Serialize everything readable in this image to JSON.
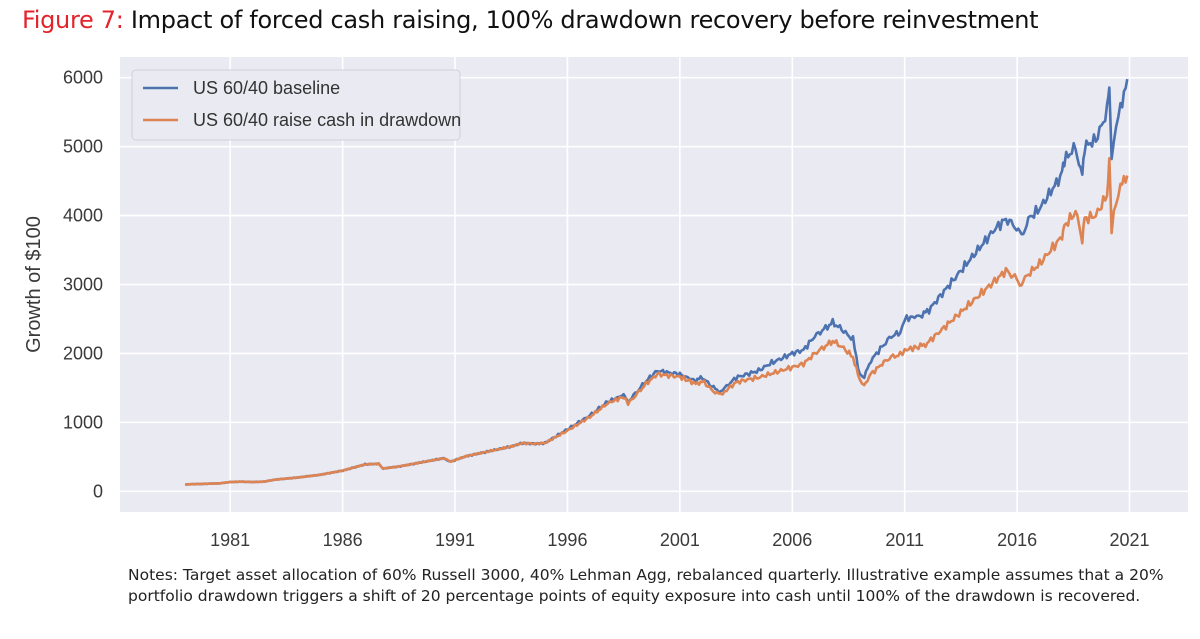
{
  "figure": {
    "label": "Figure 7",
    "separator": ":",
    "title": " Impact of forced cash raising, 100% drawdown recovery before reinvestment",
    "notes": "Notes: Target asset allocation of 60% Russell 3000, 40% Lehman Agg, rebalanced quarterly. Illustrative example assumes that a 20% portfolio drawdown triggers a shift of 20 percentage points of equity exposure into cash until 100% of the drawdown is recovered."
  },
  "colors": {
    "baseline": "#4c72b0",
    "raise_cash": "#dd8452",
    "plot_bg": "#eaeaf2",
    "grid": "#ffffff",
    "title_label": "#e3242b"
  },
  "chart_data": {
    "type": "line",
    "title": "Impact of forced cash raising, 100% drawdown recovery before reinvestment",
    "xlabel": "",
    "ylabel": "Growth of $100",
    "xlim": [
      1976.1,
      2023.6
    ],
    "ylim": [
      -300,
      6300
    ],
    "xticks": [
      1981,
      1986,
      1991,
      1996,
      2001,
      2006,
      2011,
      2016,
      2021
    ],
    "yticks": [
      0,
      1000,
      2000,
      3000,
      4000,
      5000,
      6000
    ],
    "grid": true,
    "legend_position": "top-left",
    "series": [
      {
        "name": "US 60/40 baseline",
        "x": [
          1979.0,
          1980.0,
          1980.5,
          1981.0,
          1981.5,
          1982.0,
          1982.5,
          1983.0,
          1984.0,
          1985.0,
          1986.0,
          1987.0,
          1987.6,
          1987.8,
          1988.5,
          1989.5,
          1990.5,
          1990.8,
          1991.5,
          1992.5,
          1993.5,
          1994.0,
          1994.5,
          1995.0,
          1996.0,
          1997.0,
          1997.8,
          1998.5,
          1998.7,
          1999.5,
          2000.0,
          2000.5,
          2001.0,
          2001.7,
          2002.0,
          2002.5,
          2002.8,
          2003.0,
          2003.5,
          2004.0,
          2004.5,
          2005.0,
          2006.0,
          2006.5,
          2007.0,
          2007.8,
          2008.2,
          2008.7,
          2009.0,
          2009.2,
          2009.5,
          2010.0,
          2010.4,
          2010.8,
          2011.0,
          2011.7,
          2012.0,
          2013.0,
          2014.0,
          2015.0,
          2015.5,
          2015.9,
          2016.2,
          2016.5,
          2017.0,
          2018.0,
          2018.1,
          2018.6,
          2018.9,
          2019.0,
          2019.5,
          2020.0,
          2020.1,
          2020.2,
          2020.4,
          2020.6,
          2020.9
        ],
        "values": [
          100,
          110,
          115,
          135,
          140,
          135,
          140,
          170,
          200,
          240,
          300,
          390,
          400,
          330,
          360,
          420,
          480,
          430,
          510,
          580,
          650,
          700,
          690,
          700,
          900,
          1100,
          1300,
          1400,
          1300,
          1600,
          1750,
          1720,
          1700,
          1600,
          1650,
          1500,
          1450,
          1500,
          1650,
          1700,
          1750,
          1850,
          2000,
          2050,
          2250,
          2450,
          2350,
          2200,
          1700,
          1650,
          1900,
          2100,
          2250,
          2300,
          2500,
          2550,
          2600,
          3000,
          3400,
          3800,
          3950,
          3850,
          3700,
          3950,
          4100,
          4600,
          4800,
          5000,
          4550,
          5000,
          5100,
          5500,
          5950,
          4800,
          5300,
          5600,
          5980
        ]
      },
      {
        "name": "US 60/40 raise cash in drawdown",
        "x": [
          1979.0,
          1980.0,
          1980.5,
          1981.0,
          1981.5,
          1982.0,
          1982.5,
          1983.0,
          1984.0,
          1985.0,
          1986.0,
          1987.0,
          1987.6,
          1987.8,
          1988.5,
          1989.5,
          1990.5,
          1990.8,
          1991.5,
          1992.5,
          1993.5,
          1994.0,
          1994.5,
          1995.0,
          1996.0,
          1997.0,
          1997.8,
          1998.5,
          1998.7,
          1999.5,
          2000.0,
          2000.5,
          2001.0,
          2001.7,
          2002.0,
          2002.5,
          2002.8,
          2003.0,
          2003.5,
          2004.0,
          2004.5,
          2005.0,
          2006.0,
          2006.5,
          2007.0,
          2007.8,
          2008.2,
          2008.7,
          2009.0,
          2009.2,
          2009.5,
          2010.0,
          2010.4,
          2010.8,
          2011.0,
          2011.7,
          2012.0,
          2013.0,
          2014.0,
          2015.0,
          2015.5,
          2015.9,
          2016.2,
          2016.5,
          2017.0,
          2018.0,
          2018.1,
          2018.6,
          2018.9,
          2019.0,
          2019.5,
          2020.0,
          2020.1,
          2020.2,
          2020.4,
          2020.6,
          2020.9
        ],
        "values": [
          100,
          110,
          115,
          135,
          140,
          135,
          140,
          170,
          200,
          240,
          300,
          390,
          400,
          330,
          360,
          420,
          480,
          430,
          510,
          580,
          650,
          700,
          690,
          700,
          880,
          1080,
          1280,
          1370,
          1270,
          1560,
          1700,
          1680,
          1660,
          1560,
          1600,
          1450,
          1400,
          1450,
          1580,
          1620,
          1650,
          1700,
          1800,
          1850,
          2000,
          2180,
          2100,
          1950,
          1600,
          1550,
          1700,
          1850,
          1950,
          1980,
          2050,
          2100,
          2150,
          2450,
          2750,
          3050,
          3200,
          3100,
          3000,
          3150,
          3300,
          3700,
          3850,
          4050,
          3650,
          3950,
          4000,
          4300,
          4800,
          3800,
          4200,
          4400,
          4580
        ]
      }
    ]
  }
}
